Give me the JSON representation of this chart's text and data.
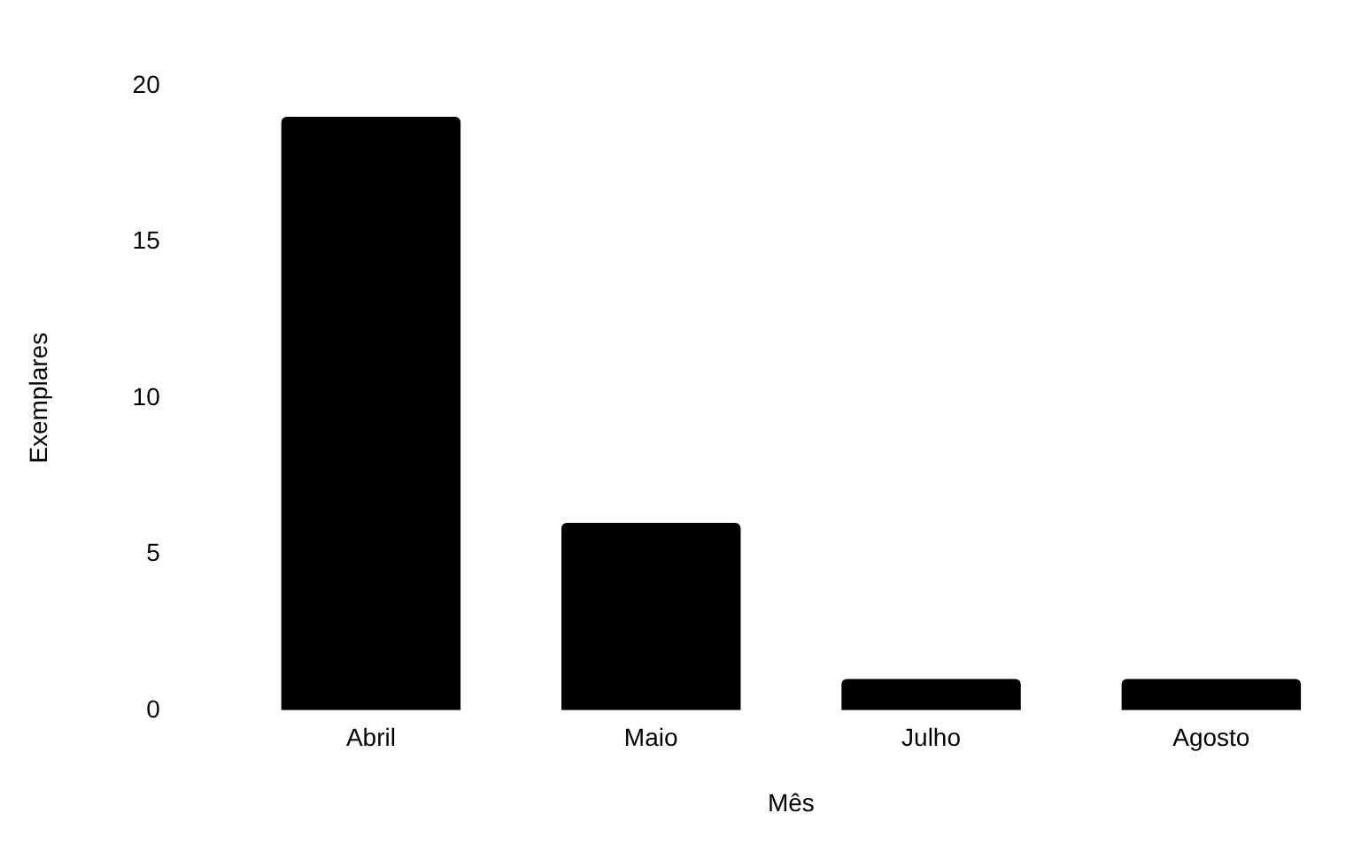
{
  "chart_data": {
    "type": "bar",
    "xlabel": "Mês",
    "ylabel": "Exemplares",
    "categories": [
      "Abril",
      "Maio",
      "Julho",
      "Agosto"
    ],
    "values": [
      19,
      6,
      1,
      1
    ],
    "color": "#000000",
    "ylim": [
      0,
      20
    ],
    "yticks": [
      0,
      5,
      10,
      15,
      20
    ],
    "grid": false,
    "legend": false
  }
}
